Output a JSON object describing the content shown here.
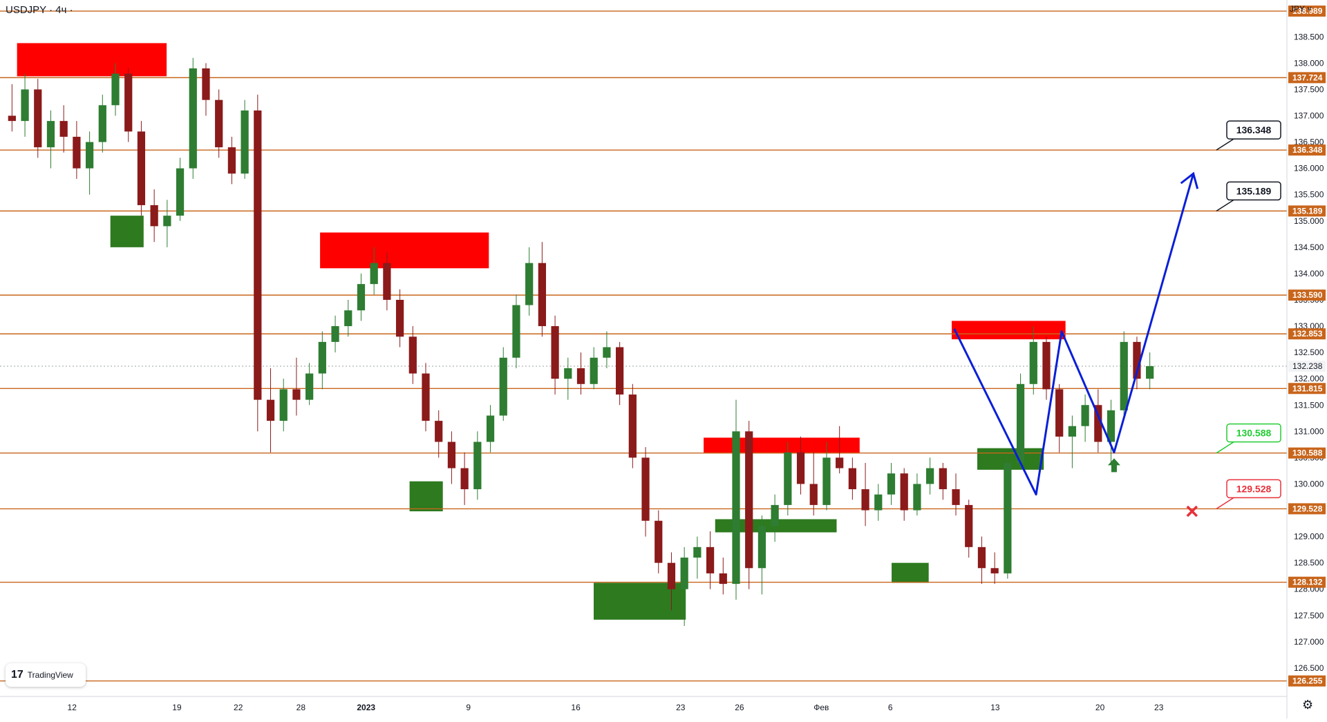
{
  "header": {
    "symbol": "USDJPY · 4ч ·",
    "currency": "JPY ˅"
  },
  "brand": {
    "logo": "17",
    "name": "TradingView"
  },
  "icons": {
    "settings": "gear-icon",
    "target_marker": "arrow-up-icon",
    "stop_marker": "cross-icon"
  },
  "colors": {
    "level_line": "#c8651b",
    "up_candle": "#2e7d32",
    "down_candle": "#8b1a1a",
    "supply_zone": "#ff0000",
    "demand_zone": "#2d7a1f",
    "stop_red": "#e8303a",
    "trail_green": "#2e8b2e",
    "projection": "#0a1fd8",
    "take_profit_green": "#22cc33"
  },
  "chart_data": {
    "type": "candlestick",
    "symbol": "USDJPY",
    "timeframe": "4ч",
    "ylim": [
      126.0,
      139.2
    ],
    "y_ticks": [
      "138.500",
      "138.000",
      "137.500",
      "137.000",
      "136.500",
      "136.000",
      "135.500",
      "135.000",
      "134.500",
      "134.000",
      "133.500",
      "133.000",
      "132.500",
      "132.000",
      "131.500",
      "131.000",
      "130.500",
      "130.000",
      "129.500",
      "129.000",
      "128.500",
      "128.000",
      "127.500",
      "127.000",
      "126.500"
    ],
    "x_ticks": [
      "12",
      "19",
      "22",
      "28",
      "2023",
      "9",
      "16",
      "23",
      "26",
      "Фев",
      "6",
      "13",
      "20",
      "23"
    ],
    "horizontal_levels": [
      "138.989",
      "137.724",
      "136.348",
      "135.189",
      "133.590",
      "132.853",
      "131.815",
      "130.588",
      "129.528",
      "128.132",
      "126.255"
    ],
    "current_price": "132.238",
    "callouts": [
      {
        "label": "136.348",
        "value": 136.348,
        "style": "black"
      },
      {
        "label": "135.189",
        "value": 135.189,
        "style": "black"
      },
      {
        "label": "130.588",
        "value": 130.588,
        "style": "green"
      },
      {
        "label": "129.528",
        "value": 129.528,
        "style": "red"
      }
    ],
    "zones": [
      {
        "kind": "supply",
        "from": 0.9,
        "to": 12.6,
        "low": 137.75,
        "high": 138.38
      },
      {
        "kind": "demand",
        "from": 8.2,
        "to": 10.8,
        "low": 134.5,
        "high": 135.1
      },
      {
        "kind": "supply",
        "from": 24.6,
        "to": 37.8,
        "low": 134.1,
        "high": 134.78
      },
      {
        "kind": "demand",
        "from": 31.6,
        "to": 34.2,
        "low": 129.48,
        "high": 130.05
      },
      {
        "kind": "demand",
        "from": 46.0,
        "to": 53.2,
        "low": 127.42,
        "high": 128.12
      },
      {
        "kind": "supply",
        "from": 54.6,
        "to": 66.8,
        "low": 130.58,
        "high": 130.88
      },
      {
        "kind": "demand",
        "from": 55.5,
        "to": 65.0,
        "low": 129.08,
        "high": 129.33
      },
      {
        "kind": "demand",
        "from": 69.3,
        "to": 72.2,
        "low": 128.12,
        "high": 128.5
      },
      {
        "kind": "supply",
        "from": 74.0,
        "to": 82.9,
        "low": 132.75,
        "high": 133.1
      },
      {
        "kind": "demand",
        "from": 76.0,
        "to": 81.2,
        "low": 130.27,
        "high": 130.68
      }
    ],
    "projection_path": [
      [
        74.2,
        132.95
      ],
      [
        80.6,
        129.8
      ],
      [
        82.6,
        132.9
      ],
      [
        86.7,
        130.6
      ],
      [
        92.9,
        135.9
      ]
    ],
    "markers": [
      {
        "kind": "target",
        "x": 86.7,
        "y": 130.33
      },
      {
        "kind": "stop",
        "x": 92.8,
        "y": 129.48
      }
    ],
    "candles": [
      {
        "o": 137.0,
        "h": 137.6,
        "l": 136.7,
        "c": 136.9
      },
      {
        "o": 136.9,
        "h": 137.8,
        "l": 136.6,
        "c": 137.5
      },
      {
        "o": 137.5,
        "h": 137.7,
        "l": 136.2,
        "c": 136.4
      },
      {
        "o": 136.4,
        "h": 137.1,
        "l": 136.0,
        "c": 136.9
      },
      {
        "o": 136.9,
        "h": 137.2,
        "l": 136.3,
        "c": 136.6
      },
      {
        "o": 136.6,
        "h": 136.9,
        "l": 135.8,
        "c": 136.0
      },
      {
        "o": 136.0,
        "h": 136.7,
        "l": 135.5,
        "c": 136.5
      },
      {
        "o": 136.5,
        "h": 137.4,
        "l": 136.3,
        "c": 137.2
      },
      {
        "o": 137.2,
        "h": 138.0,
        "l": 137.0,
        "c": 137.8
      },
      {
        "o": 137.8,
        "h": 137.9,
        "l": 136.5,
        "c": 136.7
      },
      {
        "o": 136.7,
        "h": 136.9,
        "l": 135.1,
        "c": 135.3
      },
      {
        "o": 135.3,
        "h": 135.6,
        "l": 134.6,
        "c": 134.9
      },
      {
        "o": 134.9,
        "h": 135.4,
        "l": 134.5,
        "c": 135.1
      },
      {
        "o": 135.1,
        "h": 136.2,
        "l": 135.0,
        "c": 136.0
      },
      {
        "o": 136.0,
        "h": 138.1,
        "l": 135.8,
        "c": 137.9
      },
      {
        "o": 137.9,
        "h": 138.0,
        "l": 137.0,
        "c": 137.3
      },
      {
        "o": 137.3,
        "h": 137.5,
        "l": 136.2,
        "c": 136.4
      },
      {
        "o": 136.4,
        "h": 136.6,
        "l": 135.7,
        "c": 135.9
      },
      {
        "o": 135.9,
        "h": 137.3,
        "l": 135.8,
        "c": 137.1
      },
      {
        "o": 137.1,
        "h": 137.4,
        "l": 131.0,
        "c": 131.6
      },
      {
        "o": 131.6,
        "h": 132.2,
        "l": 130.6,
        "c": 131.2
      },
      {
        "o": 131.2,
        "h": 132.0,
        "l": 131.0,
        "c": 131.8
      },
      {
        "o": 131.8,
        "h": 132.4,
        "l": 131.3,
        "c": 131.6
      },
      {
        "o": 131.6,
        "h": 132.3,
        "l": 131.5,
        "c": 132.1
      },
      {
        "o": 132.1,
        "h": 132.9,
        "l": 131.8,
        "c": 132.7
      },
      {
        "o": 132.7,
        "h": 133.2,
        "l": 132.5,
        "c": 133.0
      },
      {
        "o": 133.0,
        "h": 133.5,
        "l": 132.8,
        "c": 133.3
      },
      {
        "o": 133.3,
        "h": 134.0,
        "l": 133.1,
        "c": 133.8
      },
      {
        "o": 133.8,
        "h": 134.5,
        "l": 133.6,
        "c": 134.2
      },
      {
        "o": 134.2,
        "h": 134.4,
        "l": 133.3,
        "c": 133.5
      },
      {
        "o": 133.5,
        "h": 133.7,
        "l": 132.6,
        "c": 132.8
      },
      {
        "o": 132.8,
        "h": 133.0,
        "l": 131.9,
        "c": 132.1
      },
      {
        "o": 132.1,
        "h": 132.3,
        "l": 131.0,
        "c": 131.2
      },
      {
        "o": 131.2,
        "h": 131.4,
        "l": 130.5,
        "c": 130.8
      },
      {
        "o": 130.8,
        "h": 131.0,
        "l": 130.0,
        "c": 130.3
      },
      {
        "o": 130.3,
        "h": 130.6,
        "l": 129.6,
        "c": 129.9
      },
      {
        "o": 129.9,
        "h": 131.0,
        "l": 129.7,
        "c": 130.8
      },
      {
        "o": 130.8,
        "h": 131.5,
        "l": 130.6,
        "c": 131.3
      },
      {
        "o": 131.3,
        "h": 132.6,
        "l": 131.2,
        "c": 132.4
      },
      {
        "o": 132.4,
        "h": 133.6,
        "l": 132.2,
        "c": 133.4
      },
      {
        "o": 133.4,
        "h": 134.5,
        "l": 133.2,
        "c": 134.2
      },
      {
        "o": 134.2,
        "h": 134.6,
        "l": 132.8,
        "c": 133.0
      },
      {
        "o": 133.0,
        "h": 133.2,
        "l": 131.7,
        "c": 132.0
      },
      {
        "o": 132.0,
        "h": 132.4,
        "l": 131.6,
        "c": 132.2
      },
      {
        "o": 132.2,
        "h": 132.5,
        "l": 131.7,
        "c": 131.9
      },
      {
        "o": 131.9,
        "h": 132.6,
        "l": 131.8,
        "c": 132.4
      },
      {
        "o": 132.4,
        "h": 132.9,
        "l": 132.2,
        "c": 132.6
      },
      {
        "o": 132.6,
        "h": 132.7,
        "l": 131.5,
        "c": 131.7
      },
      {
        "o": 131.7,
        "h": 131.9,
        "l": 130.3,
        "c": 130.5
      },
      {
        "o": 130.5,
        "h": 130.7,
        "l": 129.0,
        "c": 129.3
      },
      {
        "o": 129.3,
        "h": 129.5,
        "l": 128.3,
        "c": 128.5
      },
      {
        "o": 128.5,
        "h": 128.7,
        "l": 127.6,
        "c": 128.0
      },
      {
        "o": 128.0,
        "h": 128.8,
        "l": 127.3,
        "c": 128.6
      },
      {
        "o": 128.6,
        "h": 129.0,
        "l": 128.2,
        "c": 128.8
      },
      {
        "o": 128.8,
        "h": 129.1,
        "l": 128.0,
        "c": 128.3
      },
      {
        "o": 128.3,
        "h": 128.6,
        "l": 127.9,
        "c": 128.1
      },
      {
        "o": 128.1,
        "h": 131.6,
        "l": 127.8,
        "c": 131.0
      },
      {
        "o": 131.0,
        "h": 131.2,
        "l": 128.0,
        "c": 128.4
      },
      {
        "o": 128.4,
        "h": 129.4,
        "l": 127.9,
        "c": 129.2
      },
      {
        "o": 129.2,
        "h": 129.8,
        "l": 128.9,
        "c": 129.6
      },
      {
        "o": 129.6,
        "h": 130.8,
        "l": 129.4,
        "c": 130.6
      },
      {
        "o": 130.6,
        "h": 130.9,
        "l": 129.8,
        "c": 130.0
      },
      {
        "o": 130.0,
        "h": 130.6,
        "l": 129.4,
        "c": 129.6
      },
      {
        "o": 129.6,
        "h": 130.8,
        "l": 129.5,
        "c": 130.5
      },
      {
        "o": 130.5,
        "h": 131.1,
        "l": 130.2,
        "c": 130.3
      },
      {
        "o": 130.3,
        "h": 130.5,
        "l": 129.7,
        "c": 129.9
      },
      {
        "o": 129.9,
        "h": 130.4,
        "l": 129.2,
        "c": 129.5
      },
      {
        "o": 129.5,
        "h": 130.0,
        "l": 129.3,
        "c": 129.8
      },
      {
        "o": 129.8,
        "h": 130.4,
        "l": 129.6,
        "c": 130.2
      },
      {
        "o": 130.2,
        "h": 130.3,
        "l": 129.3,
        "c": 129.5
      },
      {
        "o": 129.5,
        "h": 130.2,
        "l": 129.4,
        "c": 130.0
      },
      {
        "o": 130.0,
        "h": 130.5,
        "l": 129.8,
        "c": 130.3
      },
      {
        "o": 130.3,
        "h": 130.4,
        "l": 129.7,
        "c": 129.9
      },
      {
        "o": 129.9,
        "h": 130.2,
        "l": 129.4,
        "c": 129.6
      },
      {
        "o": 129.6,
        "h": 129.7,
        "l": 128.6,
        "c": 128.8
      },
      {
        "o": 128.8,
        "h": 129.0,
        "l": 128.1,
        "c": 128.4
      },
      {
        "o": 128.4,
        "h": 128.7,
        "l": 128.1,
        "c": 128.3
      },
      {
        "o": 128.3,
        "h": 130.5,
        "l": 128.2,
        "c": 130.4
      },
      {
        "o": 130.4,
        "h": 132.1,
        "l": 130.3,
        "c": 131.9
      },
      {
        "o": 131.9,
        "h": 133.0,
        "l": 131.7,
        "c": 132.7
      },
      {
        "o": 132.7,
        "h": 132.8,
        "l": 131.6,
        "c": 131.8
      },
      {
        "o": 131.8,
        "h": 131.9,
        "l": 130.6,
        "c": 130.9
      },
      {
        "o": 130.9,
        "h": 131.3,
        "l": 130.3,
        "c": 131.1
      },
      {
        "o": 131.1,
        "h": 131.7,
        "l": 130.8,
        "c": 131.5
      },
      {
        "o": 131.5,
        "h": 131.8,
        "l": 130.6,
        "c": 130.8
      },
      {
        "o": 130.8,
        "h": 131.6,
        "l": 130.4,
        "c": 131.4
      },
      {
        "o": 131.4,
        "h": 132.9,
        "l": 131.3,
        "c": 132.7
      },
      {
        "o": 132.7,
        "h": 132.8,
        "l": 131.8,
        "c": 132.0
      },
      {
        "o": 132.0,
        "h": 132.5,
        "l": 131.8,
        "c": 132.24
      }
    ]
  }
}
